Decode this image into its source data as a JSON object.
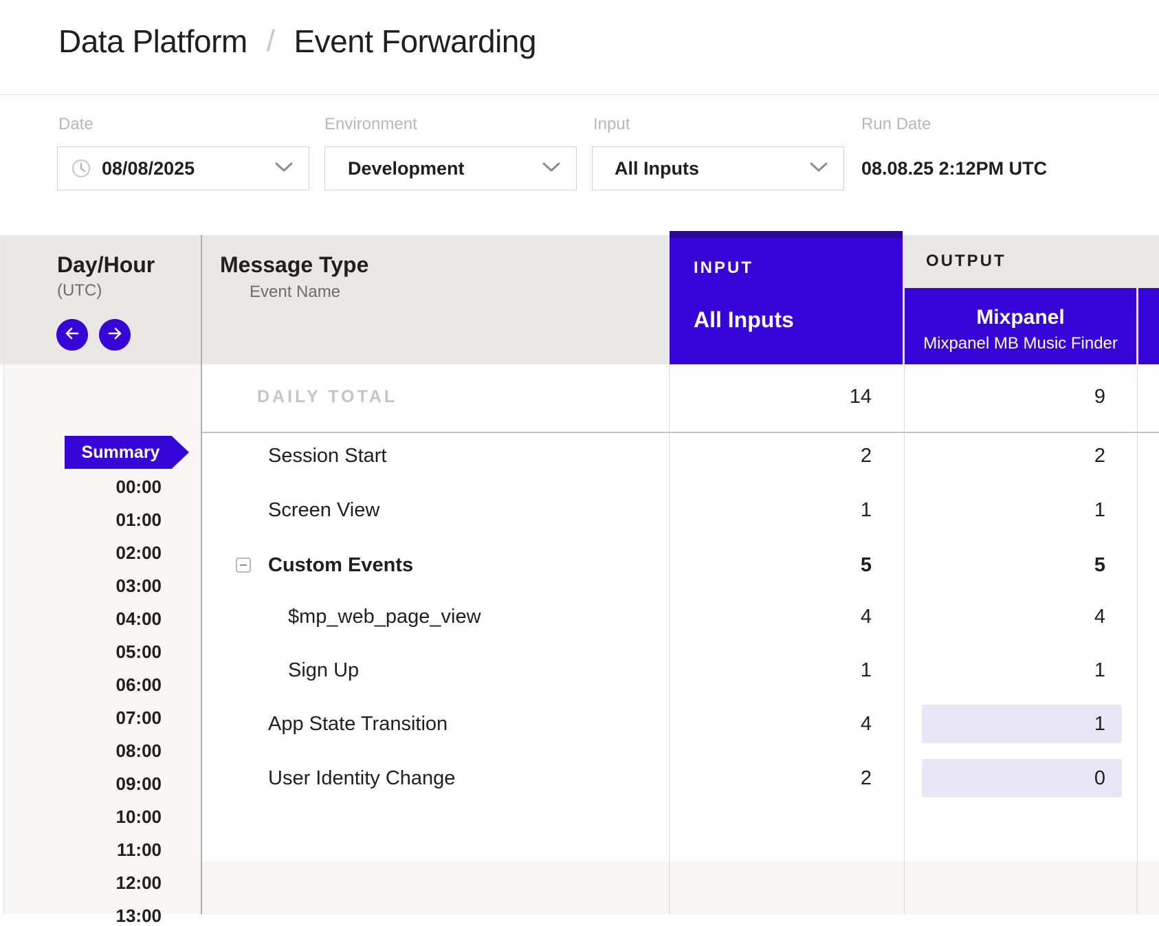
{
  "breadcrumb": {
    "section": "Data Platform",
    "separator": "/",
    "page": "Event Forwarding"
  },
  "filters": {
    "date": {
      "label": "Date",
      "value": "08/08/2025"
    },
    "environment": {
      "label": "Environment",
      "value": "Development"
    },
    "input": {
      "label": "Input",
      "value": "All Inputs"
    },
    "run_date": {
      "label": "Run Date",
      "value": "08.08.25 2:12PM UTC"
    }
  },
  "grid": {
    "day_hour_header": "Day/Hour",
    "day_hour_sub": "(UTC)",
    "message_type_header": "Message Type",
    "message_type_sub": "Event Name",
    "input_section_label": "INPUT",
    "input_column_title": "All Inputs",
    "output_section_label": "OUTPUT",
    "output_column_title": "Mixpanel",
    "output_column_subtitle": "Mixpanel MB Music Finder",
    "summary_label": "Summary",
    "daily_total": {
      "label": "DAILY TOTAL",
      "input": "14",
      "output": "9"
    },
    "rows": [
      {
        "label": "Session Start",
        "level": "row",
        "bold": false,
        "input": "2",
        "output": "2",
        "highlight": false
      },
      {
        "label": "Screen View",
        "level": "row",
        "bold": false,
        "input": "1",
        "output": "1",
        "highlight": false
      },
      {
        "label": "Custom Events",
        "level": "group",
        "bold": true,
        "input": "5",
        "output": "5",
        "highlight": false,
        "collapse_icon": "minus-box"
      },
      {
        "label": "$mp_web_page_view",
        "level": "child",
        "bold": false,
        "input": "4",
        "output": "4",
        "highlight": false
      },
      {
        "label": "Sign Up",
        "level": "child",
        "bold": false,
        "input": "1",
        "output": "1",
        "highlight": false
      },
      {
        "label": "App State Transition",
        "level": "row",
        "bold": false,
        "input": "4",
        "output": "1",
        "highlight": true
      },
      {
        "label": "User Identity Change",
        "level": "row",
        "bold": false,
        "input": "2",
        "output": "0",
        "highlight": true
      }
    ],
    "times": [
      "00:00",
      "01:00",
      "02:00",
      "03:00",
      "04:00",
      "05:00",
      "06:00",
      "07:00",
      "08:00",
      "09:00",
      "10:00",
      "11:00",
      "12:00",
      "13:00"
    ]
  },
  "icons": [
    "clock-icon",
    "chevron-down-icon",
    "arrow-left-icon",
    "arrow-right-icon",
    "collapse-minus-icon"
  ],
  "colors": {
    "accent": "#3606d9",
    "accent_dark": "#2b0692",
    "highlight_cell": "#e9e6f8",
    "header_band": "#e9e8e6"
  }
}
